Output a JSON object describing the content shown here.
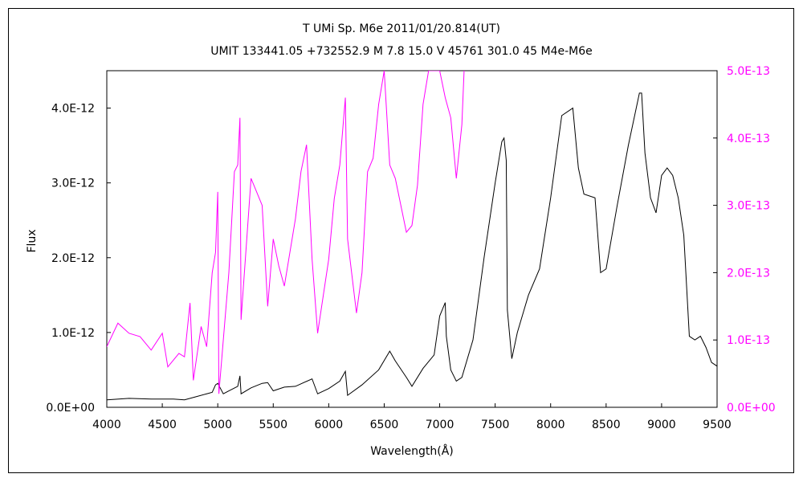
{
  "chart_data": {
    "type": "line",
    "title": "T UMi    Sp. M6e    2011/01/20.814(UT)",
    "subtitle": "UMIT 133441.05 +732552.9 M 7.8 15.0 V 45761 301.0 45 M4e-M6e",
    "xlabel": "Wavelength(Å)",
    "ylabel": "Flux",
    "xlim": [
      4000,
      9500
    ],
    "ylim_left": [
      0,
      4.5e-12
    ],
    "ylim_right": [
      0,
      5e-13
    ],
    "x_ticks": [
      "4000",
      "4500",
      "5000",
      "5500",
      "6000",
      "6500",
      "7000",
      "7500",
      "8000",
      "8500",
      "9000",
      "9500"
    ],
    "y_ticks_left": [
      "0.0E+00",
      "1.0E-12",
      "2.0E-12",
      "3.0E-12",
      "4.0E-12"
    ],
    "y_ticks_right": [
      "0.0E+00",
      "1.0E-13",
      "2.0E-13",
      "3.0E-13",
      "4.0E-13",
      "5.0E-13"
    ],
    "grid": false,
    "legend": "none",
    "series": [
      {
        "axis": "left",
        "color": "#000000",
        "points": [
          [
            4000,
            1e-13
          ],
          [
            4200,
            1.2e-13
          ],
          [
            4400,
            1.1e-13
          ],
          [
            4600,
            1.1e-13
          ],
          [
            4700,
            1e-13
          ],
          [
            4800,
            1.4e-13
          ],
          [
            4900,
            1.8e-13
          ],
          [
            4950,
            2e-13
          ],
          [
            4980,
            3e-13
          ],
          [
            5000,
            3.2e-13
          ],
          [
            5050,
            1.8e-13
          ],
          [
            5100,
            2.2e-13
          ],
          [
            5180,
            2.8e-13
          ],
          [
            5200,
            4.2e-13
          ],
          [
            5210,
            1.8e-13
          ],
          [
            5300,
            2.6e-13
          ],
          [
            5400,
            3.2e-13
          ],
          [
            5450,
            3.3e-13
          ],
          [
            5500,
            2.2e-13
          ],
          [
            5600,
            2.7e-13
          ],
          [
            5700,
            2.8e-13
          ],
          [
            5850,
            3.8e-13
          ],
          [
            5900,
            1.8e-13
          ],
          [
            6000,
            2.5e-13
          ],
          [
            6100,
            3.5e-13
          ],
          [
            6150,
            4.8e-13
          ],
          [
            6170,
            1.6e-13
          ],
          [
            6300,
            3e-13
          ],
          [
            6450,
            5e-13
          ],
          [
            6550,
            7.5e-13
          ],
          [
            6600,
            6.2e-13
          ],
          [
            6700,
            4e-13
          ],
          [
            6750,
            2.8e-13
          ],
          [
            6850,
            5.2e-13
          ],
          [
            6950,
            7e-13
          ],
          [
            7000,
            1.22e-12
          ],
          [
            7050,
            1.4e-12
          ],
          [
            7060,
            9.5e-13
          ],
          [
            7100,
            5e-13
          ],
          [
            7150,
            3.5e-13
          ],
          [
            7200,
            4e-13
          ],
          [
            7300,
            9e-13
          ],
          [
            7400,
            2e-12
          ],
          [
            7500,
            3e-12
          ],
          [
            7560,
            3.55e-12
          ],
          [
            7580,
            3.6e-12
          ],
          [
            7600,
            3.3e-12
          ],
          [
            7610,
            1.3e-12
          ],
          [
            7650,
            6.5e-13
          ],
          [
            7700,
            1e-12
          ],
          [
            7800,
            1.5e-12
          ],
          [
            7900,
            1.85e-12
          ],
          [
            8000,
            2.8e-12
          ],
          [
            8100,
            3.9e-12
          ],
          [
            8200,
            4e-12
          ],
          [
            8250,
            3.2e-12
          ],
          [
            8300,
            2.85e-12
          ],
          [
            8400,
            2.8e-12
          ],
          [
            8450,
            1.8e-12
          ],
          [
            8500,
            1.85e-12
          ],
          [
            8600,
            2.7e-12
          ],
          [
            8700,
            3.5e-12
          ],
          [
            8800,
            4.2e-12
          ],
          [
            8820,
            4.2e-12
          ],
          [
            8850,
            3.4e-12
          ],
          [
            8900,
            2.8e-12
          ],
          [
            8950,
            2.6e-12
          ],
          [
            9000,
            3.1e-12
          ],
          [
            9050,
            3.2e-12
          ],
          [
            9100,
            3.1e-12
          ],
          [
            9150,
            2.8e-12
          ],
          [
            9200,
            2.3e-12
          ],
          [
            9250,
            9.5e-13
          ],
          [
            9300,
            9e-13
          ],
          [
            9350,
            9.5e-13
          ],
          [
            9400,
            8e-13
          ],
          [
            9450,
            6e-13
          ],
          [
            9500,
            5.5e-13
          ]
        ]
      },
      {
        "axis": "right",
        "color": "#ff00ff",
        "points": [
          [
            4000,
            9e-14
          ],
          [
            4100,
            1.25e-13
          ],
          [
            4200,
            1.1e-13
          ],
          [
            4300,
            1.05e-13
          ],
          [
            4400,
            8.5e-14
          ],
          [
            4500,
            1.1e-13
          ],
          [
            4550,
            6e-14
          ],
          [
            4650,
            8e-14
          ],
          [
            4700,
            7.5e-14
          ],
          [
            4750,
            1.55e-13
          ],
          [
            4780,
            4e-14
          ],
          [
            4850,
            1.2e-13
          ],
          [
            4900,
            9e-14
          ],
          [
            4950,
            2e-13
          ],
          [
            4980,
            2.3e-13
          ],
          [
            5000,
            3.2e-13
          ],
          [
            5010,
            2e-14
          ],
          [
            5100,
            2e-13
          ],
          [
            5150,
            3.5e-13
          ],
          [
            5180,
            3.6e-13
          ],
          [
            5200,
            4.3e-13
          ],
          [
            5210,
            1.3e-13
          ],
          [
            5300,
            3.4e-13
          ],
          [
            5350,
            3.2e-13
          ],
          [
            5400,
            3e-13
          ],
          [
            5450,
            1.5e-13
          ],
          [
            5500,
            2.5e-13
          ],
          [
            5550,
            2.1e-13
          ],
          [
            5600,
            1.8e-13
          ],
          [
            5700,
            2.8e-13
          ],
          [
            5750,
            3.5e-13
          ],
          [
            5800,
            3.9e-13
          ],
          [
            5850,
            2.2e-13
          ],
          [
            5900,
            1.1e-13
          ],
          [
            6000,
            2.2e-13
          ],
          [
            6050,
            3.1e-13
          ],
          [
            6100,
            3.6e-13
          ],
          [
            6150,
            4.6e-13
          ],
          [
            6170,
            2.5e-13
          ],
          [
            6250,
            1.4e-13
          ],
          [
            6300,
            2e-13
          ],
          [
            6350,
            3.5e-13
          ],
          [
            6400,
            3.7e-13
          ],
          [
            6450,
            4.5e-13
          ],
          [
            6500,
            5e-13
          ],
          [
            6550,
            3.6e-13
          ],
          [
            6600,
            3.4e-13
          ],
          [
            6650,
            3e-13
          ],
          [
            6700,
            2.6e-13
          ],
          [
            6750,
            2.7e-13
          ],
          [
            6800,
            3.3e-13
          ],
          [
            6850,
            4.5e-13
          ],
          [
            6900,
            5e-13
          ],
          [
            7000,
            5e-13
          ],
          [
            7050,
            4.6e-13
          ],
          [
            7100,
            4.3e-13
          ],
          [
            7150,
            3.4e-13
          ],
          [
            7200,
            4.2e-13
          ],
          [
            7220,
            5e-13
          ]
        ]
      }
    ]
  }
}
